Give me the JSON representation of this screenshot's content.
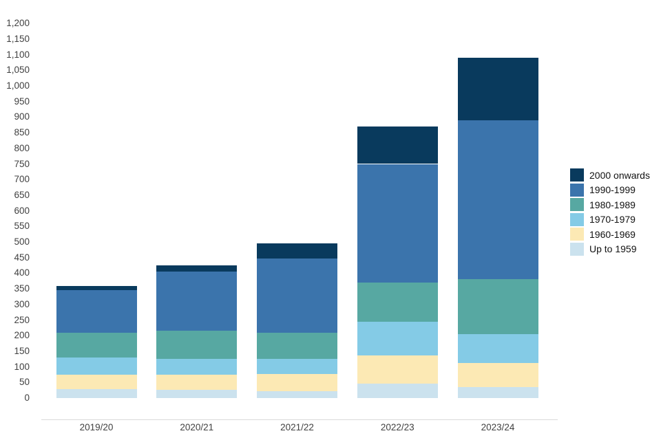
{
  "chart_data": {
    "type": "bar",
    "stacked": true,
    "title": "",
    "xlabel": "",
    "ylabel": "",
    "ylim": [
      0,
      1200
    ],
    "ytick_step": 50,
    "grid": false,
    "legend_position": "right",
    "categories": [
      "2019/20",
      "2020/21",
      "2021/22",
      "2022/23",
      "2023/24"
    ],
    "series": [
      {
        "name": "Up to 1959",
        "color": "#cbe2ee",
        "values": [
          28,
          26,
          22,
          47,
          35
        ]
      },
      {
        "name": "1960-1969",
        "color": "#fce9b4",
        "values": [
          47,
          49,
          55,
          90,
          78
        ]
      },
      {
        "name": "1970-1979",
        "color": "#84cbe6",
        "values": [
          55,
          51,
          49,
          108,
          92
        ]
      },
      {
        "name": "1980-1989",
        "color": "#57a8a2",
        "values": [
          80,
          89,
          84,
          125,
          176
        ]
      },
      {
        "name": "1990-1999",
        "color": "#3b74ac",
        "values": [
          135,
          190,
          237,
          380,
          509
        ]
      },
      {
        "name": "2000 onwards",
        "color": "#093a5d",
        "values": [
          15,
          20,
          48,
          120,
          200
        ]
      }
    ],
    "totals": [
      360,
      425,
      495,
      870,
      1090
    ],
    "y_tick_labels": [
      "0",
      "50",
      "100",
      "150",
      "200",
      "250",
      "300",
      "350",
      "400",
      "450",
      "500",
      "550",
      "600",
      "650",
      "700",
      "750",
      "800",
      "850",
      "900",
      "950",
      "1,000",
      "1,050",
      "1,100",
      "1,150",
      "1,200"
    ],
    "legend_items_top_to_bottom": [
      "2000 onwards",
      "1990-1999",
      "1980-1989",
      "1970-1979",
      "1960-1969",
      "Up to 1959"
    ]
  }
}
